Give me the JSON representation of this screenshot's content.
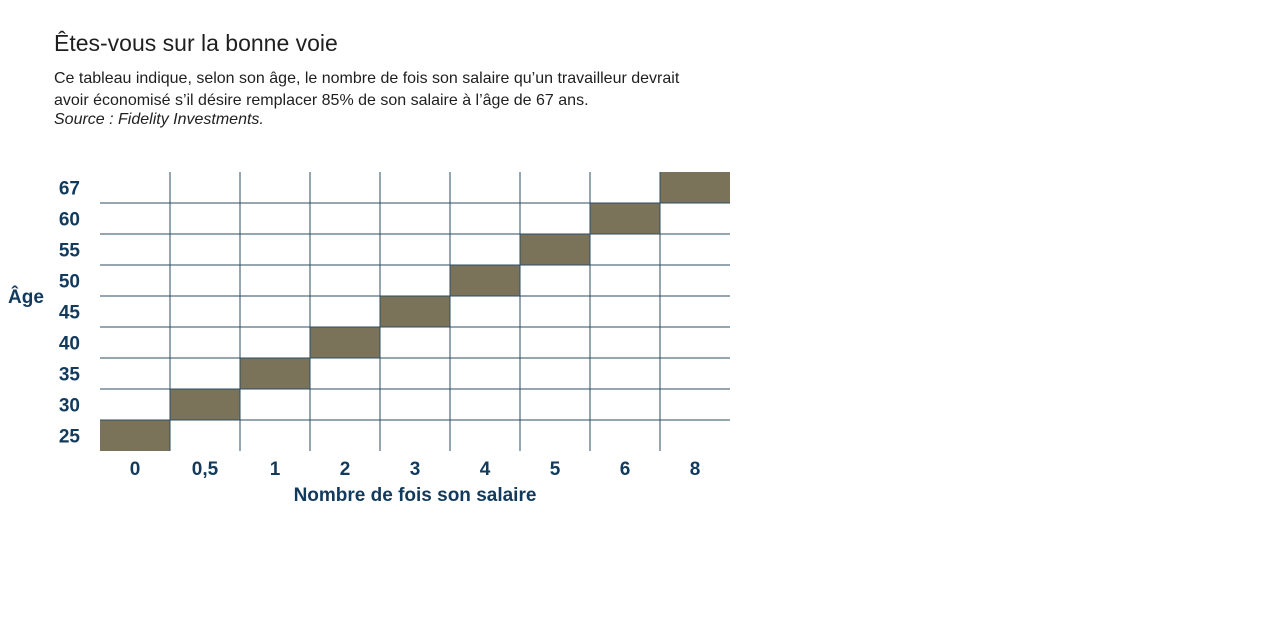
{
  "header": {
    "title": "Êtes-vous sur la bonne voie",
    "description_line1": "Ce tableau indique, selon son âge, le nombre de fois son salaire qu’un travailleur devrait",
    "description_line2": "avoir économisé s’il désire remplacer 85% de son salaire à l’âge de 67 ans.",
    "source": "Source : Fidelity Investments."
  },
  "chart_data": {
    "type": "heatmap",
    "xlabel": "Nombre de fois son salaire",
    "ylabel": "Âge",
    "x_categories": [
      "0",
      "0,5",
      "1",
      "2",
      "3",
      "4",
      "5",
      "6",
      "8"
    ],
    "y_categories": [
      "25",
      "30",
      "35",
      "40",
      "45",
      "50",
      "55",
      "60",
      "67"
    ],
    "points": [
      {
        "age": "25",
        "multiple": "0"
      },
      {
        "age": "30",
        "multiple": "0,5"
      },
      {
        "age": "35",
        "multiple": "1"
      },
      {
        "age": "40",
        "multiple": "2"
      },
      {
        "age": "45",
        "multiple": "3"
      },
      {
        "age": "50",
        "multiple": "4"
      },
      {
        "age": "55",
        "multiple": "5"
      },
      {
        "age": "60",
        "multiple": "6"
      },
      {
        "age": "67",
        "multiple": "8"
      }
    ],
    "grid": true,
    "colors": {
      "fill": "#7a735a",
      "grid": "#2d4c63",
      "label": "#123a5c"
    }
  }
}
